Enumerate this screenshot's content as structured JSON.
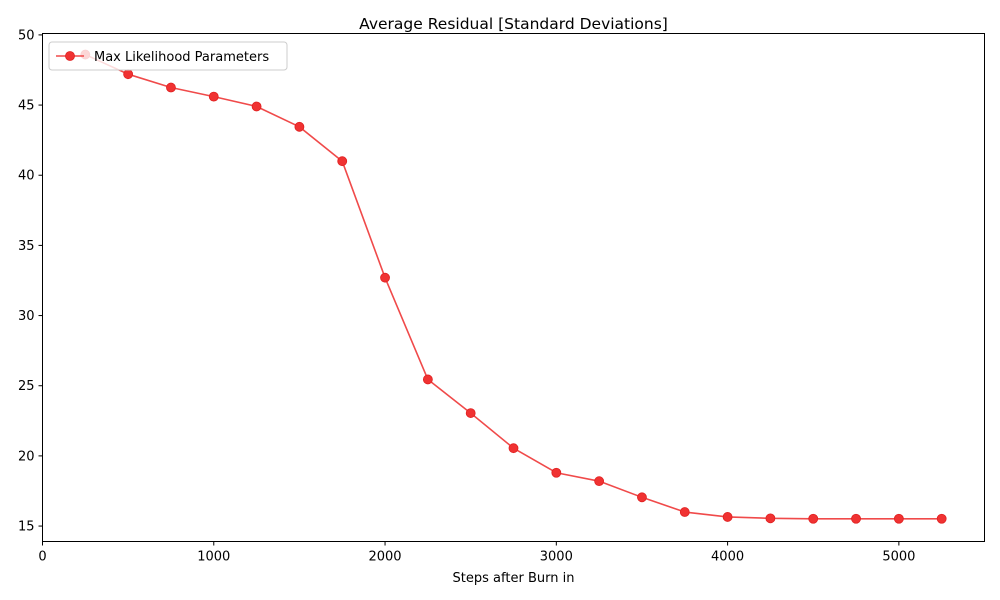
{
  "chart_data": {
    "type": "line",
    "title": "Average Residual [Standard Deviations]",
    "xlabel": "Steps after Burn in",
    "ylabel": "",
    "xlim": [
      0,
      5500
    ],
    "ylim": [
      13.9,
      50.1
    ],
    "xticks": [
      0,
      1000,
      2000,
      3000,
      4000,
      5000
    ],
    "yticks": [
      15,
      20,
      25,
      30,
      35,
      40,
      45,
      50
    ],
    "grid": false,
    "legend_position": "upper-left",
    "series": [
      {
        "name": "Max Likelihood Parameters",
        "color": "#ff0000",
        "marker": "circle",
        "x": [
          250,
          500,
          750,
          1000,
          1250,
          1500,
          1750,
          2000,
          2250,
          2500,
          2750,
          3000,
          3250,
          3500,
          3750,
          4000,
          4250,
          4500,
          4750,
          5000,
          5250
        ],
        "y": [
          48.6,
          47.2,
          46.25,
          45.6,
          44.9,
          43.45,
          41.0,
          32.7,
          25.45,
          23.05,
          20.55,
          18.8,
          18.2,
          17.05,
          16.0,
          15.65,
          15.55,
          15.52,
          15.52,
          15.52,
          15.52
        ]
      }
    ]
  }
}
